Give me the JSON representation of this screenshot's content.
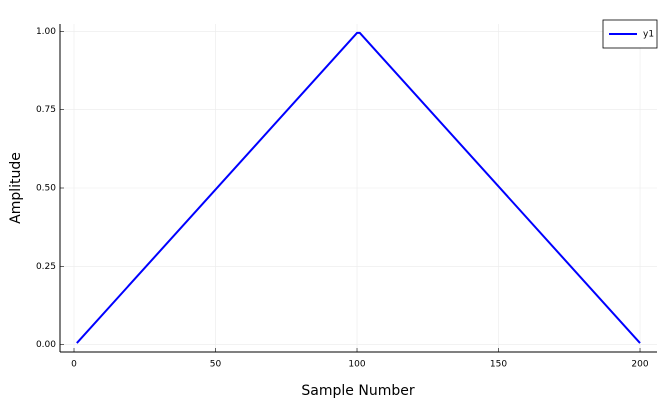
{
  "chart_data": {
    "type": "line",
    "x_label": "Sample Number",
    "y_label": "Amplitude",
    "x": [
      1,
      100,
      101,
      200
    ],
    "series": [
      {
        "name": "y1",
        "color": "#0000ff",
        "values": [
          0.005,
          0.995,
          0.995,
          0.005
        ]
      }
    ],
    "xlim": [
      -4.95,
      206
    ],
    "ylim": [
      -0.0235,
      1.0235
    ],
    "xticks": [
      0,
      50,
      100,
      150,
      200
    ],
    "yticks": [
      {
        "value": 0,
        "label": "0.00"
      },
      {
        "value": 0.25,
        "label": "0.25"
      },
      {
        "value": 0.5,
        "label": "0.50"
      },
      {
        "value": 0.75,
        "label": "0.75"
      },
      {
        "value": 1,
        "label": "1.00"
      }
    ],
    "grid": true,
    "legend": "top-right"
  }
}
